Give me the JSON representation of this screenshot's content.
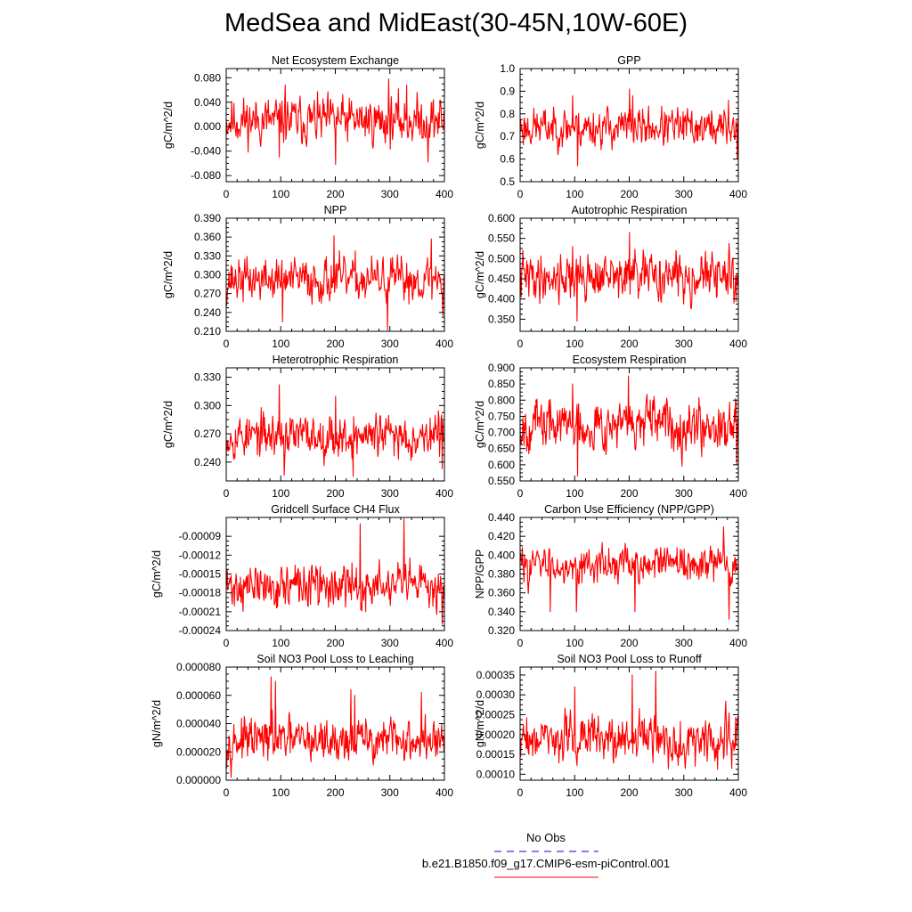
{
  "title": "MedSea and MidEast(30-45N,10W-60E)",
  "colors": {
    "series": "#ff0000",
    "obs": "#0000ff",
    "axis": "#000000",
    "background": "#ffffff"
  },
  "legend": {
    "obs_label": "No Obs",
    "model_label": "b.e21.B1850.f09_g17.CMIP6-esm-piControl.001"
  },
  "chart_data": [
    {
      "type": "line",
      "title": "Net Ecosystem Exchange",
      "ylabel": "gC/m^2/d",
      "xlabel": "",
      "xlim": [
        0,
        400
      ],
      "xticks": [
        0,
        100,
        200,
        300,
        400
      ],
      "ylim": [
        -0.09,
        0.095
      ],
      "yticks": [
        -0.08,
        -0.04,
        0.0,
        0.04,
        0.08
      ],
      "ytick_labels": [
        "-0.080",
        "-0.040",
        "0.000",
        "0.040",
        "0.080"
      ],
      "series": [
        {
          "name": "b.e21.B1850.f09_g17.CMIP6-esm-piControl.001",
          "n": 400,
          "mean": 0.01,
          "noise": 0.02,
          "seed": 11,
          "spikes": [
            [
              97,
              -0.05
            ],
            [
              108,
              0.068
            ],
            [
              200,
              -0.062
            ],
            [
              297,
              0.078
            ],
            [
              330,
              0.068
            ],
            [
              369,
              -0.058
            ]
          ]
        }
      ]
    },
    {
      "type": "line",
      "title": "GPP",
      "ylabel": "gC/m^2/d",
      "xlabel": "",
      "xlim": [
        0,
        400
      ],
      "xticks": [
        0,
        100,
        200,
        300,
        400
      ],
      "ylim": [
        0.5,
        1.0
      ],
      "yticks": [
        0.5,
        0.6,
        0.7,
        0.8,
        0.9,
        1.0
      ],
      "ytick_labels": [
        "0.5",
        "0.6",
        "0.7",
        "0.8",
        "0.9",
        "1.0"
      ],
      "series": [
        {
          "name": "b.e21.B1850.f09_g17.CMIP6-esm-piControl.001",
          "n": 400,
          "mean": 0.74,
          "noise": 0.045,
          "seed": 23,
          "spikes": [
            [
              96,
              0.88
            ],
            [
              105,
              0.57
            ],
            [
              200,
              0.91
            ],
            [
              206,
              0.88
            ],
            [
              381,
              0.86
            ],
            [
              397,
              0.6
            ]
          ]
        }
      ]
    },
    {
      "type": "line",
      "title": "NPP",
      "ylabel": "gC/m^2/d",
      "xlabel": "",
      "xlim": [
        0,
        400
      ],
      "xticks": [
        0,
        100,
        200,
        300,
        400
      ],
      "ylim": [
        0.21,
        0.39
      ],
      "yticks": [
        0.21,
        0.24,
        0.27,
        0.3,
        0.33,
        0.36,
        0.39
      ],
      "ytick_labels": [
        "0.210",
        "0.240",
        "0.270",
        "0.300",
        "0.330",
        "0.360",
        "0.390"
      ],
      "series": [
        {
          "name": "b.e21.B1850.f09_g17.CMIP6-esm-piControl.001",
          "n": 400,
          "mean": 0.292,
          "noise": 0.018,
          "seed": 37,
          "spikes": [
            [
              103,
              0.225
            ],
            [
              197,
              0.362
            ],
            [
              295,
              0.212
            ],
            [
              375,
              0.357
            ],
            [
              396,
              0.235
            ]
          ]
        }
      ]
    },
    {
      "type": "line",
      "title": "Autotrophic Respiration",
      "ylabel": "gC/m^2/d",
      "xlabel": "",
      "xlim": [
        0,
        400
      ],
      "xticks": [
        0,
        100,
        200,
        300,
        400
      ],
      "ylim": [
        0.32,
        0.6
      ],
      "yticks": [
        0.35,
        0.4,
        0.45,
        0.5,
        0.55,
        0.6
      ],
      "ytick_labels": [
        "0.350",
        "0.400",
        "0.450",
        "0.500",
        "0.550",
        "0.600"
      ],
      "series": [
        {
          "name": "b.e21.B1850.f09_g17.CMIP6-esm-piControl.001",
          "n": 400,
          "mean": 0.455,
          "noise": 0.03,
          "seed": 41,
          "spikes": [
            [
              96,
              0.53
            ],
            [
              104,
              0.345
            ],
            [
              200,
              0.565
            ],
            [
              391,
              0.39
            ]
          ]
        }
      ]
    },
    {
      "type": "line",
      "title": "Heterotrophic Respiration",
      "ylabel": "gC/m^2/d",
      "xlabel": "",
      "xlim": [
        0,
        400
      ],
      "xticks": [
        0,
        100,
        200,
        300,
        400
      ],
      "ylim": [
        0.22,
        0.34
      ],
      "yticks": [
        0.24,
        0.27,
        0.3,
        0.33
      ],
      "ytick_labels": [
        "0.240",
        "0.270",
        "0.300",
        "0.330"
      ],
      "series": [
        {
          "name": "b.e21.B1850.f09_g17.CMIP6-esm-piControl.001",
          "n": 400,
          "mean": 0.268,
          "noise": 0.012,
          "seed": 53,
          "spikes": [
            [
              97,
              0.322
            ],
            [
              106,
              0.226
            ],
            [
              200,
              0.31
            ],
            [
              232,
              0.225
            ],
            [
              395,
              0.233
            ]
          ]
        }
      ]
    },
    {
      "type": "line",
      "title": "Ecosystem Respiration",
      "ylabel": "gC/m^2/d",
      "xlabel": "",
      "xlim": [
        0,
        400
      ],
      "xticks": [
        0,
        100,
        200,
        300,
        400
      ],
      "ylim": [
        0.55,
        0.9
      ],
      "yticks": [
        0.55,
        0.6,
        0.65,
        0.7,
        0.75,
        0.8,
        0.85,
        0.9
      ],
      "ytick_labels": [
        "0.550",
        "0.600",
        "0.650",
        "0.700",
        "0.750",
        "0.800",
        "0.850",
        "0.900"
      ],
      "series": [
        {
          "name": "b.e21.B1850.f09_g17.CMIP6-esm-piControl.001",
          "n": 400,
          "mean": 0.725,
          "noise": 0.04,
          "seed": 67,
          "spikes": [
            [
              96,
              0.85
            ],
            [
              105,
              0.565
            ],
            [
              198,
              0.875
            ],
            [
              396,
              0.6
            ]
          ]
        }
      ]
    },
    {
      "type": "line",
      "title": "Gridcell Surface CH4 Flux",
      "ylabel": "gC/m^2/d",
      "xlabel": "",
      "xlim": [
        0,
        400
      ],
      "xticks": [
        0,
        100,
        200,
        300,
        400
      ],
      "ylim": [
        -0.00024,
        -6e-05
      ],
      "yticks": [
        -0.00024,
        -0.00021,
        -0.00018,
        -0.00015,
        -0.00012,
        -9e-05
      ],
      "ytick_labels": [
        "-0.00024",
        "-0.00021",
        "-0.00018",
        "-0.00015",
        "-0.00012",
        "-0.00009"
      ],
      "series": [
        {
          "name": "b.e21.B1850.f09_g17.CMIP6-esm-piControl.001",
          "n": 400,
          "mean": -0.00017,
          "noise": 1.8e-05,
          "seed": 71,
          "spikes": [
            [
              245,
              -7e-05
            ],
            [
              255,
              -0.00021
            ],
            [
              325,
              -6.2e-05
            ],
            [
              395,
              -0.00023
            ]
          ]
        }
      ]
    },
    {
      "type": "line",
      "title": "Carbon Use Efficiency (NPP/GPP)",
      "ylabel": "NPP/GPP",
      "xlabel": "",
      "xlim": [
        0,
        400
      ],
      "xticks": [
        0,
        100,
        200,
        300,
        400
      ],
      "ylim": [
        0.32,
        0.44
      ],
      "yticks": [
        0.32,
        0.34,
        0.36,
        0.38,
        0.4,
        0.42,
        0.44
      ],
      "ytick_labels": [
        "0.320",
        "0.340",
        "0.360",
        "0.380",
        "0.400",
        "0.420",
        "0.440"
      ],
      "series": [
        {
          "name": "b.e21.B1850.f09_g17.CMIP6-esm-piControl.001",
          "n": 400,
          "mean": 0.39,
          "noise": 0.01,
          "seed": 83,
          "spikes": [
            [
              55,
              0.34
            ],
            [
              103,
              0.34
            ],
            [
              210,
              0.34
            ],
            [
              372,
              0.43
            ],
            [
              382,
              0.332
            ]
          ]
        }
      ]
    },
    {
      "type": "line",
      "title": "Soil NO3 Pool Loss to Leaching",
      "ylabel": "gN/m^2/d",
      "xlabel": "",
      "xlim": [
        0,
        400
      ],
      "xticks": [
        0,
        100,
        200,
        300,
        400
      ],
      "ylim": [
        0.0,
        8e-05
      ],
      "yticks": [
        0.0,
        2e-05,
        4e-05,
        6e-05,
        8e-05
      ],
      "ytick_labels": [
        "0.000000",
        "0.000020",
        "0.000040",
        "0.000060",
        "0.000080"
      ],
      "series": [
        {
          "name": "b.e21.B1850.f09_g17.CMIP6-esm-piControl.001",
          "n": 400,
          "mean": 2.8e-05,
          "noise": 8e-06,
          "seed": 97,
          "spikes": [
            [
              82,
              7.3e-05
            ],
            [
              90,
              7e-05
            ],
            [
              228,
              6.4e-05
            ],
            [
              235,
              6e-05
            ],
            [
              357,
              6.2e-05
            ]
          ]
        }
      ]
    },
    {
      "type": "line",
      "title": "Soil NO3 Pool Loss to Runoff",
      "ylabel": "gN/m^2/d",
      "xlabel": "",
      "xlim": [
        0,
        400
      ],
      "xticks": [
        0,
        100,
        200,
        300,
        400
      ],
      "ylim": [
        8.5e-05,
        0.00037
      ],
      "yticks": [
        0.0001,
        0.00015,
        0.0002,
        0.00025,
        0.0003,
        0.00035
      ],
      "ytick_labels": [
        "0.00010",
        "0.00015",
        "0.00020",
        "0.00025",
        "0.00030",
        "0.00035"
      ],
      "series": [
        {
          "name": "b.e21.B1850.f09_g17.CMIP6-esm-piControl.001",
          "n": 400,
          "mean": 0.00019,
          "noise": 3e-05,
          "seed": 109,
          "spikes": [
            [
              100,
              0.00032
            ],
            [
              205,
              0.00035
            ],
            [
              248,
              0.00036
            ],
            [
              320,
              0.00012
            ]
          ]
        }
      ]
    }
  ]
}
